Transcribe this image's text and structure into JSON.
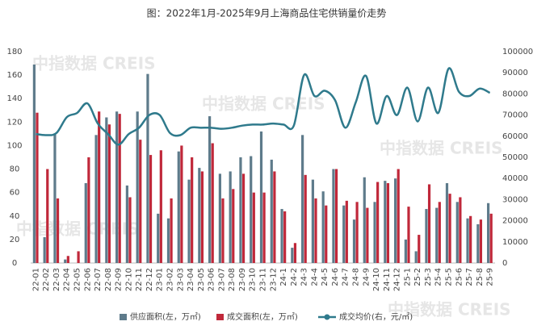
{
  "chart_data": {
    "type": "bar_line",
    "title": "图：2022年1月-2025年9月上海商品住宅供销量价走势",
    "watermark": "中指数据 CREIS",
    "categories": [
      "22-01",
      "22-02",
      "22-03",
      "22-04",
      "22-05",
      "22-06",
      "22-07",
      "22-08",
      "22-09",
      "22-10",
      "22-11",
      "22-12",
      "23-01",
      "23-02",
      "23-03",
      "23-04",
      "23-05",
      "23-06",
      "23-07",
      "23-08",
      "23-09",
      "23-10",
      "23-11",
      "23-12",
      "24-1",
      "24-2",
      "24-3",
      "24-4",
      "24-5",
      "24-6",
      "24-7",
      "24-8",
      "24-9",
      "24-10",
      "24-11",
      "24-12",
      "25-1",
      "25-2",
      "25-3",
      "25-4",
      "25-5",
      "25-6",
      "25-7",
      "25-8",
      "25-9"
    ],
    "series": [
      {
        "name": "供应面积(左，万㎡)",
        "color": "#5e7b8b",
        "type": "bar",
        "values": [
          169,
          22,
          110,
          3,
          0,
          68,
          109,
          124,
          129,
          66,
          129,
          161,
          42,
          38,
          95,
          71,
          81,
          125,
          76,
          78,
          90,
          91,
          112,
          88,
          46,
          13,
          109,
          71,
          61,
          80,
          49,
          37,
          73,
          52,
          70,
          72,
          20,
          10,
          46,
          47,
          68,
          52,
          38,
          33,
          51
        ]
      },
      {
        "name": "成交面积(左，万㎡)",
        "color": "#c0283a",
        "type": "bar",
        "values": [
          128,
          80,
          55,
          6,
          10,
          90,
          129,
          118,
          127,
          56,
          105,
          92,
          96,
          55,
          100,
          90,
          78,
          102,
          55,
          63,
          76,
          60,
          60,
          78,
          44,
          17,
          75,
          55,
          49,
          80,
          53,
          52,
          47,
          69,
          68,
          80,
          48,
          24,
          67,
          52,
          59,
          56,
          40,
          37,
          42
        ]
      },
      {
        "name": "成交均价(右，元/㎡)",
        "color": "#2f7a8c",
        "type": "line",
        "axis": "y2",
        "values": [
          61000,
          60500,
          61500,
          69000,
          71000,
          75500,
          66000,
          61000,
          56000,
          61000,
          64000,
          70000,
          70000,
          61500,
          60500,
          64000,
          64000,
          64000,
          63500,
          64000,
          65000,
          65500,
          65500,
          66000,
          65500,
          65000,
          89000,
          79000,
          81500,
          77000,
          64000,
          76000,
          88500,
          66000,
          79000,
          70000,
          83000,
          67000,
          83000,
          71000,
          92000,
          81000,
          79000,
          82500,
          80500
        ]
      }
    ],
    "ylim": [
      0,
      180
    ],
    "yticks": [
      0,
      20,
      40,
      60,
      80,
      100,
      120,
      140,
      160,
      180
    ],
    "y2lim": [
      0,
      100000
    ],
    "y2ticks": [
      0,
      10000,
      20000,
      30000,
      40000,
      50000,
      60000,
      70000,
      80000,
      90000,
      100000
    ],
    "legend": "bottom"
  }
}
